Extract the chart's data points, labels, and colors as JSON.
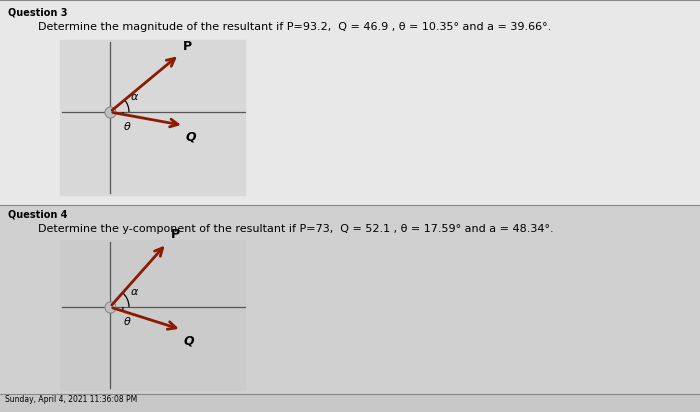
{
  "bg_color": "#c8c8c8",
  "panel_bg": "#e8e8e8",
  "separator_color": "#888888",
  "q3_label": "Question 3",
  "q3_text": "Determine the magnitude of the resultant if P=93.2,  Q = 46.9 , θ = 10.35° and a = 39.66°.",
  "q4_label": "Question 4",
  "q4_text": "Determine the y-component of the resultant if P=73,  Q = 52.1 , θ = 17.59° and a = 48.34°.",
  "arrow_color": "#8b1a00",
  "axis_color": "#555555",
  "dot_color": "#c0c0c0",
  "footer_text": "Sunday, April 4, 2021 11:36:08 PM",
  "q3_alpha": 39.66,
  "q3_theta": 10.35,
  "q4_alpha": 48.34,
  "q4_theta": 17.59
}
